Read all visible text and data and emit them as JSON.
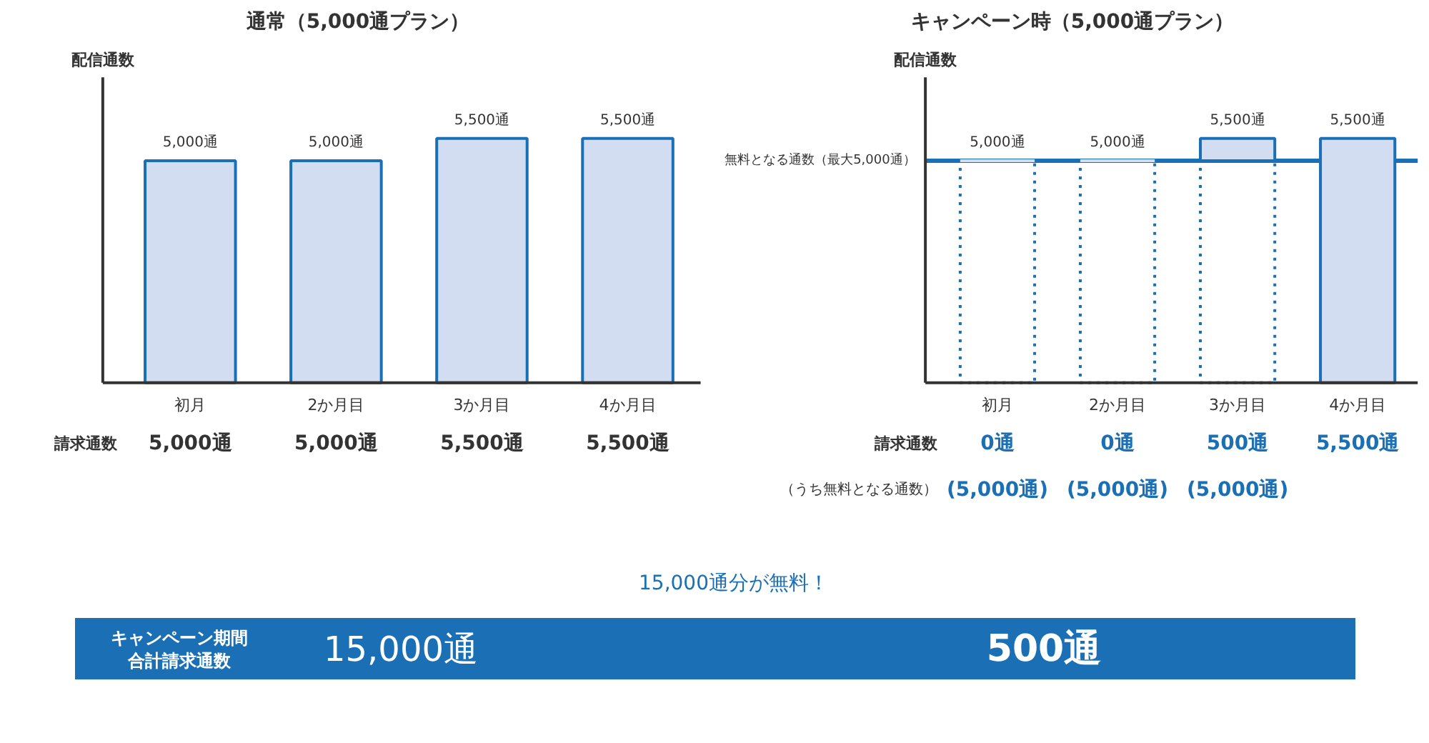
{
  "chart_data": [
    {
      "type": "bar",
      "title": "通常（5,000通プラン）",
      "ylabel": "配信通数",
      "categories": [
        "初月",
        "2か月目",
        "3か月目",
        "4か月目"
      ],
      "series": [
        {
          "color": "#d3ddf1",
          "values": [
            5000,
            5000,
            5500,
            5500
          ],
          "value_labels": [
            "5,000通",
            "5,000通",
            "5,500通",
            "5,500通"
          ]
        }
      ],
      "annotations": [
        "請求通数",
        "5,000通",
        "5,000通",
        "5,500通",
        "5,500通"
      ]
    },
    {
      "type": "bar",
      "title": "キャンペーン時（5,000通プラン）",
      "ylabel": "配信通数",
      "stacked": true,
      "categories": [
        "初月",
        "2か月目",
        "3か月目",
        "4か月目"
      ],
      "series": [
        {
          "color": "#1a6fb5",
          "line_style": "dotted",
          "values": [
            5000,
            5000,
            5000,
            null
          ],
          "value_labels": [
            "(5,000通)",
            "(5,000通)",
            "(5,000通)",
            null
          ]
        },
        {
          "color": "#d3ddf1",
          "values": [
            0,
            0,
            500,
            5500
          ],
          "value_labels": [
            "0通",
            "0通",
            "500通",
            "5,500通"
          ]
        }
      ],
      "totals": [
        "5,000通",
        "5,000通",
        "5,500通",
        "5,500通"
      ],
      "ref_lines": [
        {
          "axis": "y",
          "value": 5000,
          "label": "無料となる通数（最大5,000通）",
          "color": "#1a6fb5"
        }
      ],
      "annotations": [
        "請求通数",
        "（うち無料となる通数）"
      ]
    },
    {
      "type": "other",
      "annotations": [
        "15,000通分が無料！",
        "キャンペーン期間",
        "合計請求通数",
        "15,000通",
        "500通"
      ]
    }
  ]
}
